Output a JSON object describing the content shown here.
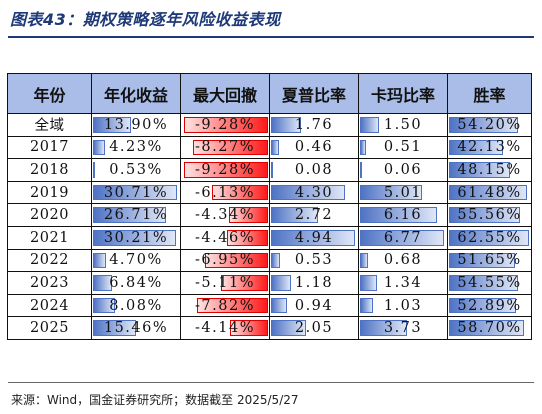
{
  "title": "图表43：期权策略逐年风险收益表现",
  "headers": [
    "年份",
    "年化收益",
    "最大回撤",
    "夏普比率",
    "卡玛比率",
    "胜率"
  ],
  "rows": [
    {
      "year": "全域",
      "ret": "13.90%",
      "dd": "-9.28%",
      "sharpe": "1.76",
      "calmar": "1.50",
      "win": "54.20%"
    },
    {
      "year": "2017",
      "ret": "4.23%",
      "dd": "-8.27%",
      "sharpe": "0.46",
      "calmar": "0.51",
      "win": "42.13%"
    },
    {
      "year": "2018",
      "ret": "0.53%",
      "dd": "-9.28%",
      "sharpe": "0.08",
      "calmar": "0.06",
      "win": "48.15%"
    },
    {
      "year": "2019",
      "ret": "30.71%",
      "dd": "-6.13%",
      "sharpe": "4.30",
      "calmar": "5.01",
      "win": "61.48%"
    },
    {
      "year": "2020",
      "ret": "26.71%",
      "dd": "-4.34%",
      "sharpe": "2.72",
      "calmar": "6.16",
      "win": "55.56%"
    },
    {
      "year": "2021",
      "ret": "30.21%",
      "dd": "-4.46%",
      "sharpe": "4.94",
      "calmar": "6.77",
      "win": "62.55%"
    },
    {
      "year": "2022",
      "ret": "4.70%",
      "dd": "-6.95%",
      "sharpe": "0.53",
      "calmar": "0.68",
      "win": "51.65%"
    },
    {
      "year": "2023",
      "ret": "6.84%",
      "dd": "-5.11%",
      "sharpe": "1.18",
      "calmar": "1.34",
      "win": "54.55%"
    },
    {
      "year": "2024",
      "ret": "8.08%",
      "dd": "-7.82%",
      "sharpe": "0.94",
      "calmar": "1.03",
      "win": "52.89%"
    },
    {
      "year": "2025",
      "ret": "15.46%",
      "dd": "-4.14%",
      "sharpe": "2.05",
      "calmar": "3.73",
      "win": "58.70%"
    }
  ],
  "colors": {
    "header_bg": "#a9bde8",
    "pos_bar": "#4f73c4",
    "neg_bar": "#ff1a1a",
    "title": "#1f3a78"
  },
  "source": "来源：Wind，国金证券研究所；数据截至 2025/5/27"
}
